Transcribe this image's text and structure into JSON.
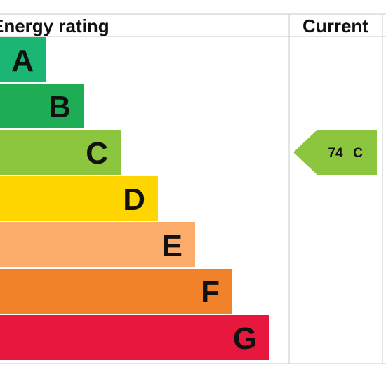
{
  "header": {
    "title": "Energy rating",
    "current": "Current"
  },
  "bands": [
    {
      "letter": "A",
      "color": "#1bb574"
    },
    {
      "letter": "B",
      "color": "#1ead55"
    },
    {
      "letter": "C",
      "color": "#8cc63f"
    },
    {
      "letter": "D",
      "color": "#ffd500"
    },
    {
      "letter": "E",
      "color": "#fbac6b"
    },
    {
      "letter": "F",
      "color": "#f2822a"
    },
    {
      "letter": "G",
      "color": "#e8173d"
    }
  ],
  "current": {
    "value": 74,
    "band": "C",
    "color": "#8cc63f"
  }
}
